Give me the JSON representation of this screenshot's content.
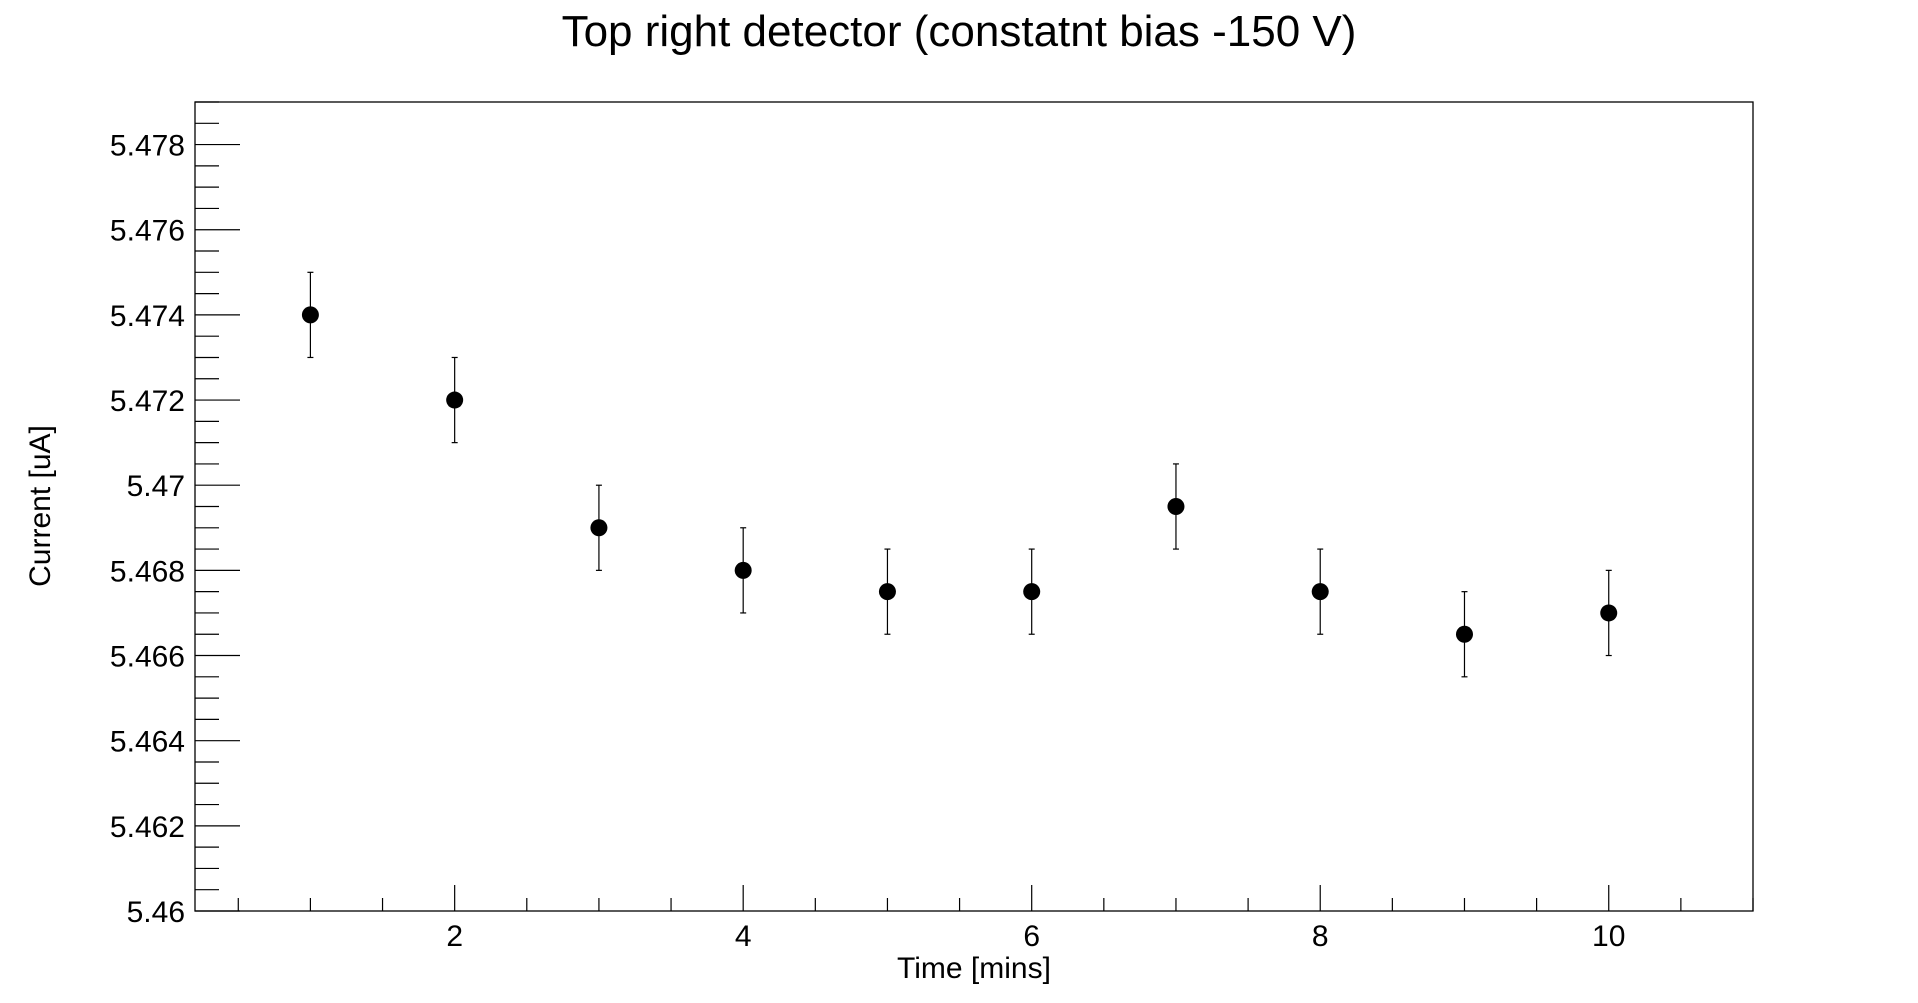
{
  "chart_data": {
    "type": "scatter",
    "title": "Top right detector (constatnt bias -150 V)",
    "xlabel": "Time [mins]",
    "ylabel": "Current [uA]",
    "xlim": [
      0.2,
      11.0
    ],
    "ylim": [
      5.46,
      5.479
    ],
    "x_ticks": [
      2,
      4,
      6,
      8,
      10
    ],
    "x_tick_labels": [
      "2",
      "4",
      "6",
      "8",
      "10"
    ],
    "y_ticks": [
      5.46,
      5.462,
      5.464,
      5.466,
      5.468,
      5.47,
      5.472,
      5.474,
      5.476,
      5.478
    ],
    "y_tick_labels": [
      "5.46",
      "5.462",
      "5.464",
      "5.466",
      "5.468",
      "5.47",
      "5.472",
      "5.474",
      "5.476",
      "5.478"
    ],
    "grid": false,
    "legend": "none",
    "marker_color": "#000000",
    "series": [
      {
        "x": [
          1,
          2,
          3,
          4,
          5,
          6,
          7,
          8,
          9,
          10
        ],
        "y": [
          5.474,
          5.472,
          5.469,
          5.468,
          5.4675,
          5.4675,
          5.4695,
          5.4675,
          5.4665,
          5.467
        ],
        "y_err": [
          0.001,
          0.001,
          0.001,
          0.001,
          0.001,
          0.001,
          0.001,
          0.001,
          0.001,
          0.001
        ]
      }
    ]
  }
}
